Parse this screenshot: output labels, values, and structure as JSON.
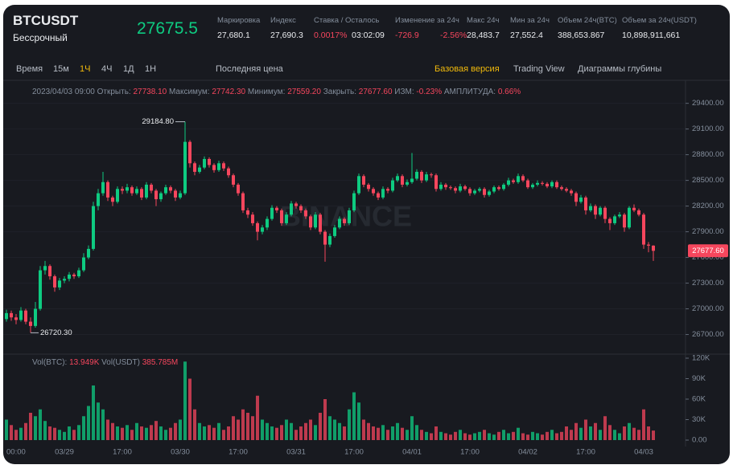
{
  "header": {
    "symbol": "BTCUSDT",
    "contract": "Бессрочный",
    "last_price": "27675.5",
    "stats": [
      {
        "label": "Маркировка",
        "value": "27,680.1"
      },
      {
        "label": "Индекс",
        "value": "27,690.3"
      },
      {
        "label": "Ставка / Осталось",
        "value": "0.0017%",
        "extra": "03:02:09"
      },
      {
        "label": "Изменение за 24ч",
        "value": "-726.9",
        "extra": "-2.56%"
      },
      {
        "label": "Макс 24ч",
        "value": "28,483.7"
      },
      {
        "label": "Мин за 24ч",
        "value": "27,552.4"
      },
      {
        "label": "Объем 24ч(BTC)",
        "value": "388,653.867"
      },
      {
        "label": "Объем за 24ч(USDT)",
        "value": "10,898,911,661"
      }
    ]
  },
  "toolbar": {
    "intervals": [
      "Время",
      "15м",
      "1Ч",
      "4Ч",
      "1Д",
      "1Н"
    ],
    "active_interval": 2,
    "price_type": "Последняя цена",
    "views": [
      "Базовая версия",
      "Trading View",
      "Диаграммы глубины"
    ],
    "active_view": 0
  },
  "legend": {
    "time": "2023/04/03 09:00",
    "items": [
      {
        "label": "Открыть:",
        "value": "27738.10"
      },
      {
        "label": "Максимум:",
        "value": "27742.30"
      },
      {
        "label": "Минимум:",
        "value": "27559.20"
      },
      {
        "label": "Закрыть:",
        "value": "27677.60"
      },
      {
        "label": "ИЗМ:",
        "value": "-0.23%"
      },
      {
        "label": "АМПЛИТУДА:",
        "value": "0.66%"
      }
    ]
  },
  "volume_legend": [
    {
      "label": "Vol(BTC):",
      "value": "13.949K"
    },
    {
      "label": "Vol(USDT)",
      "value": "385.785M"
    }
  ],
  "watermark": "BINANCE",
  "chart_data": {
    "type": "candlestick",
    "up_color": "#0ecb81",
    "down_color": "#f6465d",
    "categories": [
      "00:00",
      null,
      null,
      null,
      null,
      null,
      null,
      null,
      null,
      null,
      null,
      null,
      "03/29",
      null,
      null,
      null,
      null,
      null,
      null,
      null,
      null,
      null,
      null,
      null,
      "17:00",
      null,
      null,
      null,
      null,
      null,
      null,
      null,
      null,
      null,
      null,
      null,
      "03/30",
      null,
      null,
      null,
      null,
      null,
      null,
      null,
      null,
      null,
      null,
      null,
      "17:00",
      null,
      null,
      null,
      null,
      null,
      null,
      null,
      null,
      null,
      null,
      null,
      "03/31",
      null,
      null,
      null,
      null,
      null,
      null,
      null,
      null,
      null,
      null,
      null,
      "17:00",
      null,
      null,
      null,
      null,
      null,
      null,
      null,
      null,
      null,
      null,
      null,
      "04/01",
      null,
      null,
      null,
      null,
      null,
      null,
      null,
      null,
      null,
      null,
      null,
      "17:00",
      null,
      null,
      null,
      null,
      null,
      null,
      null,
      null,
      null,
      null,
      null,
      "04/02",
      null,
      null,
      null,
      null,
      null,
      null,
      null,
      null,
      null,
      null,
      null,
      "17:00",
      null,
      null,
      null,
      null,
      null,
      null,
      null,
      null,
      null,
      null,
      null,
      "04/03",
      null,
      null
    ],
    "candles": [
      [
        26880,
        26990,
        26850,
        26950
      ],
      [
        26950,
        26980,
        26860,
        26900
      ],
      [
        26900,
        26940,
        26820,
        26870
      ],
      [
        26870,
        27020,
        26850,
        26980
      ],
      [
        26980,
        27000,
        26820,
        26850
      ],
      [
        26850,
        26900,
        26720.3,
        26800
      ],
      [
        26800,
        27080,
        26780,
        27000
      ],
      [
        27000,
        27500,
        26980,
        27450
      ],
      [
        27450,
        27560,
        27400,
        27500
      ],
      [
        27500,
        27520,
        27340,
        27380
      ],
      [
        27380,
        27400,
        27200,
        27250
      ],
      [
        27250,
        27360,
        27220,
        27330
      ],
      [
        27330,
        27380,
        27300,
        27350
      ],
      [
        27350,
        27430,
        27320,
        27400
      ],
      [
        27400,
        27420,
        27350,
        27380
      ],
      [
        27380,
        27480,
        27360,
        27450
      ],
      [
        27450,
        27650,
        27430,
        27600
      ],
      [
        27600,
        27740,
        27580,
        27700
      ],
      [
        27700,
        28250,
        27680,
        28200
      ],
      [
        28200,
        28400,
        28150,
        28350
      ],
      [
        28350,
        28600,
        28320,
        28480
      ],
      [
        28480,
        28500,
        28260,
        28300
      ],
      [
        28300,
        28320,
        28200,
        28250
      ],
      [
        28250,
        28430,
        28230,
        28400
      ],
      [
        28400,
        28430,
        28340,
        28380
      ],
      [
        28380,
        28460,
        28350,
        28420
      ],
      [
        28420,
        28440,
        28320,
        28350
      ],
      [
        28350,
        28430,
        28330,
        28400
      ],
      [
        28400,
        28420,
        28270,
        28300
      ],
      [
        28300,
        28480,
        28280,
        28450
      ],
      [
        28450,
        28470,
        28350,
        28380
      ],
      [
        28380,
        28400,
        28200,
        28280
      ],
      [
        28280,
        28370,
        28250,
        28350
      ],
      [
        28350,
        28450,
        28330,
        28420
      ],
      [
        28420,
        28440,
        28350,
        28380
      ],
      [
        28380,
        28400,
        28260,
        28300
      ],
      [
        28300,
        28380,
        28280,
        28350
      ],
      [
        28350,
        29184.8,
        28330,
        28950
      ],
      [
        28950,
        28970,
        28650,
        28700
      ],
      [
        28700,
        28720,
        28560,
        28600
      ],
      [
        28600,
        28680,
        28580,
        28650
      ],
      [
        28650,
        28780,
        28630,
        28750
      ],
      [
        28750,
        28770,
        28650,
        28680
      ],
      [
        28680,
        28700,
        28590,
        28620
      ],
      [
        28620,
        28730,
        28600,
        28700
      ],
      [
        28700,
        28720,
        28610,
        28640
      ],
      [
        28640,
        28660,
        28530,
        28560
      ],
      [
        28560,
        28580,
        28420,
        28450
      ],
      [
        28450,
        28470,
        28320,
        28350
      ],
      [
        28350,
        28370,
        28120,
        28150
      ],
      [
        28150,
        28180,
        28060,
        28100
      ],
      [
        28100,
        28130,
        27970,
        28000
      ],
      [
        28000,
        28020,
        27800,
        27900
      ],
      [
        27900,
        27980,
        27870,
        27950
      ],
      [
        27950,
        28080,
        27920,
        28050
      ],
      [
        28050,
        28210,
        28030,
        28180
      ],
      [
        28180,
        28200,
        28120,
        28150
      ],
      [
        28150,
        28170,
        27970,
        28000
      ],
      [
        28000,
        28130,
        27980,
        28100
      ],
      [
        28100,
        28260,
        28080,
        28230
      ],
      [
        28230,
        28250,
        28170,
        28200
      ],
      [
        28200,
        28220,
        28120,
        28150
      ],
      [
        28150,
        28170,
        28050,
        28080
      ],
      [
        28080,
        28100,
        27920,
        27950
      ],
      [
        27950,
        28130,
        27930,
        28100
      ],
      [
        28100,
        28120,
        27870,
        27900
      ],
      [
        27900,
        27920,
        27550,
        27750
      ],
      [
        27750,
        27880,
        27720,
        27850
      ],
      [
        27850,
        27980,
        27830,
        27950
      ],
      [
        27950,
        28080,
        27930,
        28050
      ],
      [
        28050,
        28070,
        27970,
        28000
      ],
      [
        28000,
        28180,
        27980,
        28150
      ],
      [
        28150,
        28380,
        28130,
        28350
      ],
      [
        28350,
        28580,
        28330,
        28550
      ],
      [
        28550,
        28570,
        28420,
        28450
      ],
      [
        28450,
        28470,
        28370,
        28400
      ],
      [
        28400,
        28420,
        28320,
        28350
      ],
      [
        28350,
        28370,
        28270,
        28300
      ],
      [
        28300,
        28430,
        28280,
        28400
      ],
      [
        28400,
        28420,
        28350,
        28380
      ],
      [
        28380,
        28530,
        28360,
        28500
      ],
      [
        28500,
        28580,
        28480,
        28550
      ],
      [
        28550,
        28570,
        28420,
        28450
      ],
      [
        28450,
        28510,
        28430,
        28480
      ],
      [
        28480,
        28820,
        28460,
        28520
      ],
      [
        28520,
        28630,
        28500,
        28600
      ],
      [
        28600,
        28620,
        28470,
        28500
      ],
      [
        28500,
        28600,
        28480,
        28570
      ],
      [
        28570,
        28590,
        28530,
        28560
      ],
      [
        28560,
        28580,
        28370,
        28400
      ],
      [
        28400,
        28480,
        28380,
        28450
      ],
      [
        28450,
        28470,
        28390,
        28420
      ],
      [
        28420,
        28440,
        28390,
        28410
      ],
      [
        28410,
        28430,
        28350,
        28380
      ],
      [
        28380,
        28460,
        28360,
        28430
      ],
      [
        28430,
        28450,
        28380,
        28400
      ],
      [
        28400,
        28420,
        28320,
        28350
      ],
      [
        28350,
        28400,
        28330,
        28380
      ],
      [
        28380,
        28420,
        28360,
        28400
      ],
      [
        28400,
        28420,
        28300,
        28330
      ],
      [
        28330,
        28390,
        28310,
        28370
      ],
      [
        28370,
        28440,
        28350,
        28420
      ],
      [
        28420,
        28440,
        28380,
        28400
      ],
      [
        28400,
        28470,
        28380,
        28450
      ],
      [
        28450,
        28530,
        28430,
        28500
      ],
      [
        28500,
        28520,
        28460,
        28480
      ],
      [
        28480,
        28580,
        28460,
        28550
      ],
      [
        28550,
        28570,
        28480,
        28500
      ],
      [
        28500,
        28520,
        28400,
        28420
      ],
      [
        28420,
        28470,
        28400,
        28450
      ],
      [
        28450,
        28500,
        28430,
        28470
      ],
      [
        28470,
        28490,
        28440,
        28460
      ],
      [
        28460,
        28480,
        28410,
        28430
      ],
      [
        28430,
        28500,
        28410,
        28480
      ],
      [
        28480,
        28500,
        28400,
        28420
      ],
      [
        28420,
        28440,
        28380,
        28400
      ],
      [
        28400,
        28420,
        28360,
        28380
      ],
      [
        28380,
        28400,
        28320,
        28350
      ],
      [
        28350,
        28370,
        28200,
        28250
      ],
      [
        28250,
        28330,
        28230,
        28300
      ],
      [
        28300,
        28320,
        28100,
        28150
      ],
      [
        28150,
        28230,
        28130,
        28200
      ],
      [
        28200,
        28220,
        28050,
        28100
      ],
      [
        28100,
        28200,
        28080,
        28180
      ],
      [
        28180,
        28200,
        28000,
        28050
      ],
      [
        28050,
        28070,
        27920,
        28000
      ],
      [
        28000,
        28100,
        27980,
        28080
      ],
      [
        28080,
        28130,
        28060,
        28100
      ],
      [
        28100,
        28120,
        27900,
        27950
      ],
      [
        27950,
        28200,
        27930,
        28180
      ],
      [
        28180,
        28220,
        28130,
        28150
      ],
      [
        28150,
        28170,
        28080,
        28100
      ],
      [
        28100,
        28120,
        27700,
        27750
      ],
      [
        27750,
        27780,
        27660,
        27738.1
      ],
      [
        27738.1,
        27742.3,
        27559.2,
        27677.6
      ]
    ],
    "volumes": [
      30000,
      22000,
      15000,
      18000,
      25000,
      40000,
      35000,
      45000,
      28000,
      20000,
      18000,
      15000,
      12000,
      20000,
      15000,
      22000,
      35000,
      50000,
      80000,
      55000,
      45000,
      30000,
      25000,
      20000,
      18000,
      22000,
      15000,
      25000,
      20000,
      18000,
      22000,
      28000,
      20000,
      15000,
      18000,
      25000,
      30000,
      115000,
      90000,
      45000,
      25000,
      20000,
      22000,
      18000,
      25000,
      15000,
      20000,
      35000,
      30000,
      45000,
      40000,
      35000,
      65000,
      30000,
      25000,
      20000,
      18000,
      22000,
      30000,
      25000,
      15000,
      20000,
      25000,
      30000,
      22000,
      40000,
      60000,
      35000,
      30000,
      25000,
      20000,
      45000,
      70000,
      55000,
      30000,
      25000,
      20000,
      18000,
      22000,
      15000,
      20000,
      25000,
      18000,
      15000,
      35000,
      22000,
      15000,
      12000,
      10000,
      20000,
      12000,
      10000,
      8000,
      12000,
      15000,
      10000,
      8000,
      10000,
      12000,
      15000,
      10000,
      8000,
      12000,
      15000,
      10000,
      12000,
      18000,
      10000,
      8000,
      12000,
      10000,
      8000,
      12000,
      15000,
      10000,
      12000,
      20000,
      15000,
      25000,
      18000,
      30000,
      20000,
      25000,
      15000,
      35000,
      22000,
      15000,
      10000,
      20000,
      25000,
      18000,
      15000,
      45000,
      20000,
      13949
    ],
    "ylim": [
      26480,
      29650
    ],
    "yticks": [
      {
        "value": 29400,
        "label": "29400.00"
      },
      {
        "value": 29100,
        "label": "29100.00"
      },
      {
        "value": 28800,
        "label": "28800.00"
      },
      {
        "value": 28500,
        "label": "28500.00"
      },
      {
        "value": 28200,
        "label": "28200.00"
      },
      {
        "value": 27900,
        "label": "27900.00"
      },
      {
        "value": 27600,
        "label": "27600.00"
      },
      {
        "value": 27300,
        "label": "27300.00"
      },
      {
        "value": 27000,
        "label": "27000.00"
      },
      {
        "value": 26700,
        "label": "26700.00"
      }
    ],
    "vol_ylim": [
      0,
      120000
    ],
    "vol_yticks": [
      {
        "value": 120000,
        "label": "120K"
      },
      {
        "value": 90000,
        "label": "90K"
      },
      {
        "value": 60000,
        "label": "60K"
      },
      {
        "value": 30000,
        "label": "30K"
      },
      {
        "value": 0,
        "label": "0.00"
      }
    ],
    "max_label": "29184.80",
    "min_label": "26720.30",
    "last_label": "27677.60"
  }
}
